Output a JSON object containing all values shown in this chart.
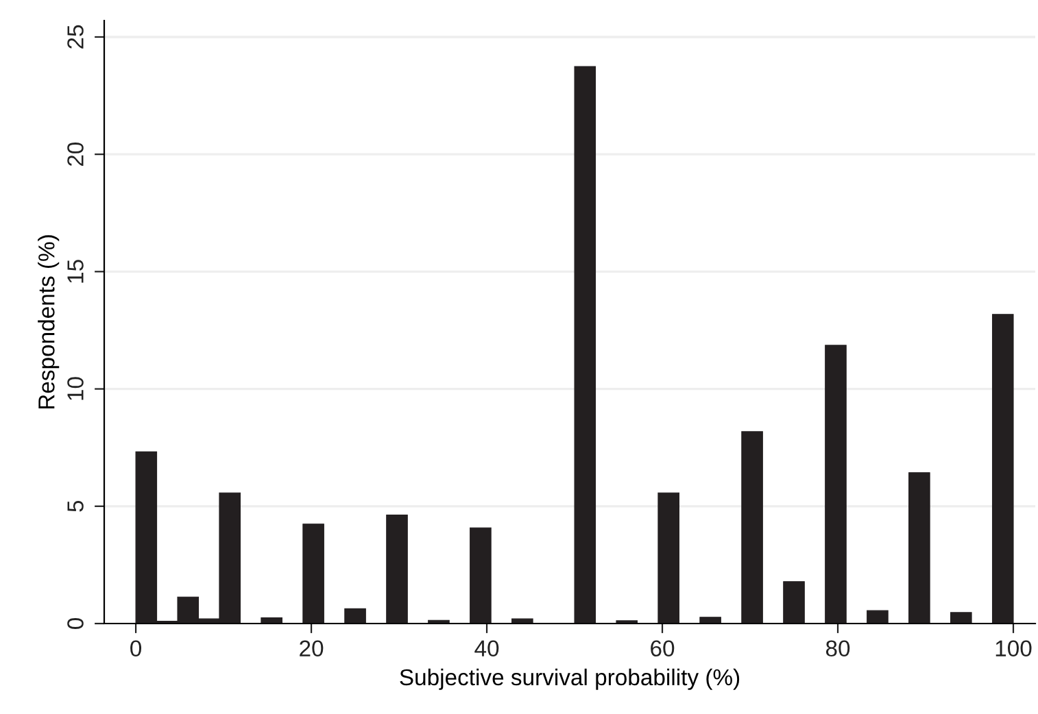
{
  "chart_data": {
    "type": "histogram",
    "xlabel": "Subjective survival probability (%)",
    "ylabel": "Respondents (%)",
    "bins": [
      0,
      2.381,
      4.762,
      7.143,
      9.524,
      11.905,
      14.286,
      16.667,
      19.048,
      21.429,
      23.81,
      26.19,
      28.571,
      30.952,
      33.333,
      35.714,
      38.095,
      40.476,
      42.857,
      45.238,
      47.619,
      50,
      52.381,
      54.762,
      57.143,
      59.524,
      61.905,
      64.286,
      66.667,
      69.048,
      71.429,
      73.81,
      76.19,
      78.571,
      80.952,
      83.333,
      85.714,
      88.095,
      90.476,
      92.857,
      95.238,
      97.619,
      100
    ],
    "values": [
      7.32,
      0.1,
      1.13,
      0.2,
      5.57,
      null,
      0.25,
      0,
      4.24,
      null,
      0.63,
      0,
      4.63,
      null,
      0.14,
      0,
      4.08,
      0,
      0.2,
      null,
      null,
      23.74,
      0,
      0.12,
      null,
      5.57,
      null,
      0.27,
      null,
      8.18,
      null,
      1.79,
      0,
      11.86,
      null,
      0.55,
      null,
      6.43,
      null,
      0.47,
      null,
      13.18
    ],
    "color": "#231f20",
    "xlim": [
      -3.6,
      102.5
    ],
    "ylim": [
      0,
      25.7
    ],
    "xticks": [
      0,
      20,
      40,
      60,
      80,
      100
    ],
    "yticks": [
      0,
      5,
      10,
      15,
      20,
      25
    ],
    "grid": "y"
  }
}
